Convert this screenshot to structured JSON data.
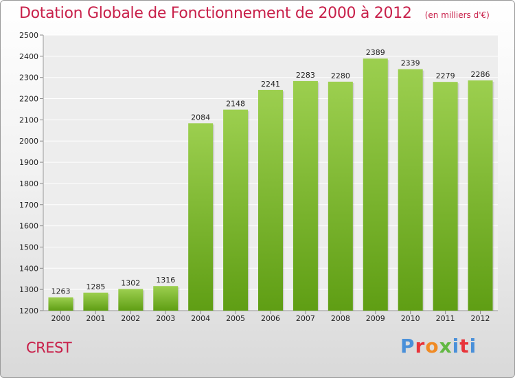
{
  "header": {
    "title": "Dotation Globale de Fonctionnement de 2000 à 2012",
    "subtitle": "(en milliers d'€)"
  },
  "footer": {
    "commune": "CREST",
    "brand": "Proxiti"
  },
  "colors": {
    "title": "#c8204a",
    "bar_top": "#9ccf4f",
    "bar_bottom": "#5f9e14",
    "brand_letters": [
      "#4a90d9",
      "#e8343a",
      "#f08a24",
      "#62b843",
      "#4a90d9",
      "#e8343a",
      "#4a90d9"
    ]
  },
  "chart_data": {
    "type": "bar",
    "categories": [
      "2000",
      "2001",
      "2002",
      "2003",
      "2004",
      "2005",
      "2006",
      "2007",
      "2008",
      "2009",
      "2010",
      "2011",
      "2012"
    ],
    "values": [
      1263,
      1285,
      1302,
      1316,
      2084,
      2148,
      2241,
      2283,
      2280,
      2389,
      2339,
      2279,
      2286
    ],
    "ylim": [
      1200,
      2500
    ],
    "yticks": [
      1200,
      1300,
      1400,
      1500,
      1600,
      1700,
      1800,
      1900,
      2000,
      2100,
      2200,
      2300,
      2400,
      2500
    ],
    "grid": true,
    "data_labels": true
  }
}
